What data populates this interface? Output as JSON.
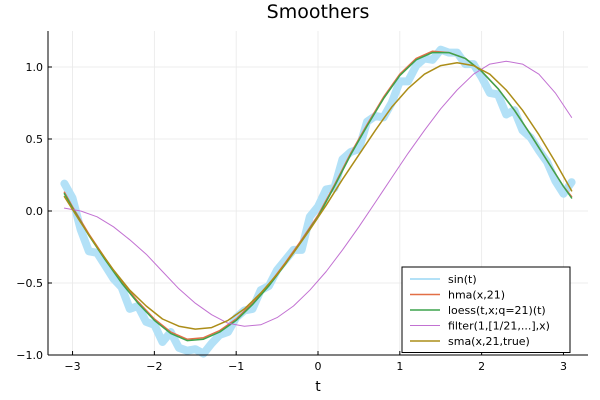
{
  "chart_data": {
    "type": "line",
    "title": "Smoothers",
    "xlabel": "t",
    "ylabel": "",
    "xlim": [
      -3.3,
      3.3
    ],
    "ylim": [
      -1.0,
      1.25
    ],
    "xticks": [
      -3,
      -2,
      -1,
      0,
      1,
      2,
      3
    ],
    "xtick_labels": [
      "−3",
      "−2",
      "−1",
      "0",
      "1",
      "2",
      "3"
    ],
    "yticks": [
      -1.0,
      -0.5,
      0.0,
      0.5,
      1.0
    ],
    "ytick_labels": [
      "−1.0",
      "−0.5",
      "0.0",
      "0.5",
      "1.0"
    ],
    "grid": true,
    "legend_position": "bottom-right",
    "series": [
      {
        "name": "sin(t)",
        "color": "#b3e1f7",
        "width": 8,
        "x": [
          -3.1,
          -3.0,
          -2.9,
          -2.8,
          -2.7,
          -2.6,
          -2.5,
          -2.4,
          -2.3,
          -2.2,
          -2.1,
          -2.0,
          -1.9,
          -1.8,
          -1.7,
          -1.6,
          -1.5,
          -1.4,
          -1.3,
          -1.2,
          -1.1,
          -1.0,
          -0.9,
          -0.8,
          -0.7,
          -0.6,
          -0.5,
          -0.4,
          -0.3,
          -0.2,
          -0.1,
          0.0,
          0.1,
          0.2,
          0.3,
          0.4,
          0.5,
          0.6,
          0.7,
          0.8,
          0.9,
          1.0,
          1.1,
          1.2,
          1.3,
          1.4,
          1.5,
          1.6,
          1.7,
          1.8,
          1.9,
          2.0,
          2.1,
          2.2,
          2.3,
          2.4,
          2.5,
          2.6,
          2.7,
          2.8,
          2.9,
          3.0,
          3.1
        ],
        "y": [
          0.19,
          0.09,
          -0.13,
          -0.28,
          -0.29,
          -0.38,
          -0.47,
          -0.53,
          -0.68,
          -0.66,
          -0.77,
          -0.79,
          -0.91,
          -0.84,
          -0.95,
          -0.97,
          -0.96,
          -0.99,
          -0.92,
          -0.86,
          -0.84,
          -0.74,
          -0.69,
          -0.68,
          -0.55,
          -0.52,
          -0.41,
          -0.34,
          -0.27,
          -0.27,
          -0.04,
          0.03,
          0.15,
          0.16,
          0.36,
          0.41,
          0.43,
          0.62,
          0.66,
          0.65,
          0.75,
          0.9,
          0.9,
          1.01,
          1.06,
          1.05,
          1.12,
          1.1,
          1.1,
          1.02,
          1.02,
          0.93,
          0.82,
          0.81,
          0.67,
          0.7,
          0.56,
          0.51,
          0.42,
          0.34,
          0.21,
          0.12,
          0.2
        ]
      },
      {
        "name": "hma(x,21)",
        "color": "#e26f46",
        "width": 1.5,
        "x": [
          -3.1,
          -3.0,
          -2.8,
          -2.6,
          -2.4,
          -2.2,
          -2.0,
          -1.8,
          -1.6,
          -1.4,
          -1.2,
          -1.0,
          -0.8,
          -0.6,
          -0.4,
          -0.2,
          0.0,
          0.2,
          0.4,
          0.6,
          0.8,
          1.0,
          1.2,
          1.4,
          1.6,
          1.8,
          2.0,
          2.2,
          2.4,
          2.6,
          2.8,
          3.0,
          3.1
        ],
        "y": [
          0.13,
          0.03,
          -0.16,
          -0.33,
          -0.49,
          -0.63,
          -0.75,
          -0.84,
          -0.89,
          -0.88,
          -0.83,
          -0.75,
          -0.64,
          -0.51,
          -0.36,
          -0.2,
          -0.03,
          0.18,
          0.4,
          0.6,
          0.79,
          0.95,
          1.06,
          1.11,
          1.1,
          1.06,
          0.97,
          0.85,
          0.7,
          0.53,
          0.35,
          0.17,
          0.1
        ]
      },
      {
        "name": "loess(t,x;q=21)(t)",
        "color": "#3da44d",
        "width": 1.5,
        "x": [
          -3.1,
          -3.0,
          -2.8,
          -2.6,
          -2.4,
          -2.2,
          -2.0,
          -1.8,
          -1.6,
          -1.4,
          -1.2,
          -1.0,
          -0.8,
          -0.6,
          -0.4,
          -0.2,
          0.0,
          0.2,
          0.4,
          0.6,
          0.8,
          1.0,
          1.2,
          1.4,
          1.6,
          1.8,
          2.0,
          2.2,
          2.4,
          2.6,
          2.8,
          3.0,
          3.1
        ],
        "y": [
          0.12,
          0.02,
          -0.17,
          -0.34,
          -0.5,
          -0.64,
          -0.76,
          -0.85,
          -0.9,
          -0.89,
          -0.84,
          -0.76,
          -0.65,
          -0.52,
          -0.37,
          -0.21,
          -0.04,
          0.17,
          0.39,
          0.59,
          0.78,
          0.94,
          1.05,
          1.1,
          1.1,
          1.06,
          0.97,
          0.85,
          0.7,
          0.53,
          0.35,
          0.17,
          0.09
        ]
      },
      {
        "name": "filter(1,[1/21,...],x)",
        "color": "#c271d2",
        "width": 1,
        "x": [
          -3.1,
          -2.9,
          -2.7,
          -2.5,
          -2.3,
          -2.1,
          -1.9,
          -1.7,
          -1.5,
          -1.3,
          -1.1,
          -0.9,
          -0.7,
          -0.5,
          -0.3,
          -0.1,
          0.1,
          0.3,
          0.5,
          0.7,
          0.9,
          1.1,
          1.3,
          1.5,
          1.7,
          1.9,
          2.1,
          2.3,
          2.5,
          2.7,
          2.9,
          3.1
        ],
        "y": [
          0.02,
          0.0,
          -0.04,
          -0.11,
          -0.2,
          -0.3,
          -0.42,
          -0.54,
          -0.64,
          -0.72,
          -0.78,
          -0.8,
          -0.79,
          -0.74,
          -0.66,
          -0.55,
          -0.42,
          -0.27,
          -0.11,
          0.06,
          0.23,
          0.4,
          0.56,
          0.71,
          0.84,
          0.95,
          1.02,
          1.04,
          1.02,
          0.95,
          0.82,
          0.65
        ]
      },
      {
        "name": "sma(x,21,true)",
        "color": "#ac8d18",
        "width": 1.5,
        "x": [
          -3.1,
          -2.9,
          -2.7,
          -2.5,
          -2.3,
          -2.1,
          -1.9,
          -1.7,
          -1.5,
          -1.3,
          -1.1,
          -0.9,
          -0.7,
          -0.5,
          -0.3,
          -0.1,
          0.1,
          0.3,
          0.5,
          0.7,
          0.9,
          1.1,
          1.3,
          1.5,
          1.7,
          1.9,
          2.1,
          2.3,
          2.5,
          2.7,
          2.9,
          3.1
        ],
        "y": [
          0.1,
          -0.08,
          -0.25,
          -0.41,
          -0.55,
          -0.66,
          -0.75,
          -0.8,
          -0.82,
          -0.81,
          -0.76,
          -0.68,
          -0.57,
          -0.44,
          -0.29,
          -0.13,
          0.04,
          0.22,
          0.39,
          0.56,
          0.72,
          0.85,
          0.95,
          1.01,
          1.03,
          1.01,
          0.95,
          0.84,
          0.7,
          0.53,
          0.34,
          0.14
        ]
      }
    ]
  }
}
